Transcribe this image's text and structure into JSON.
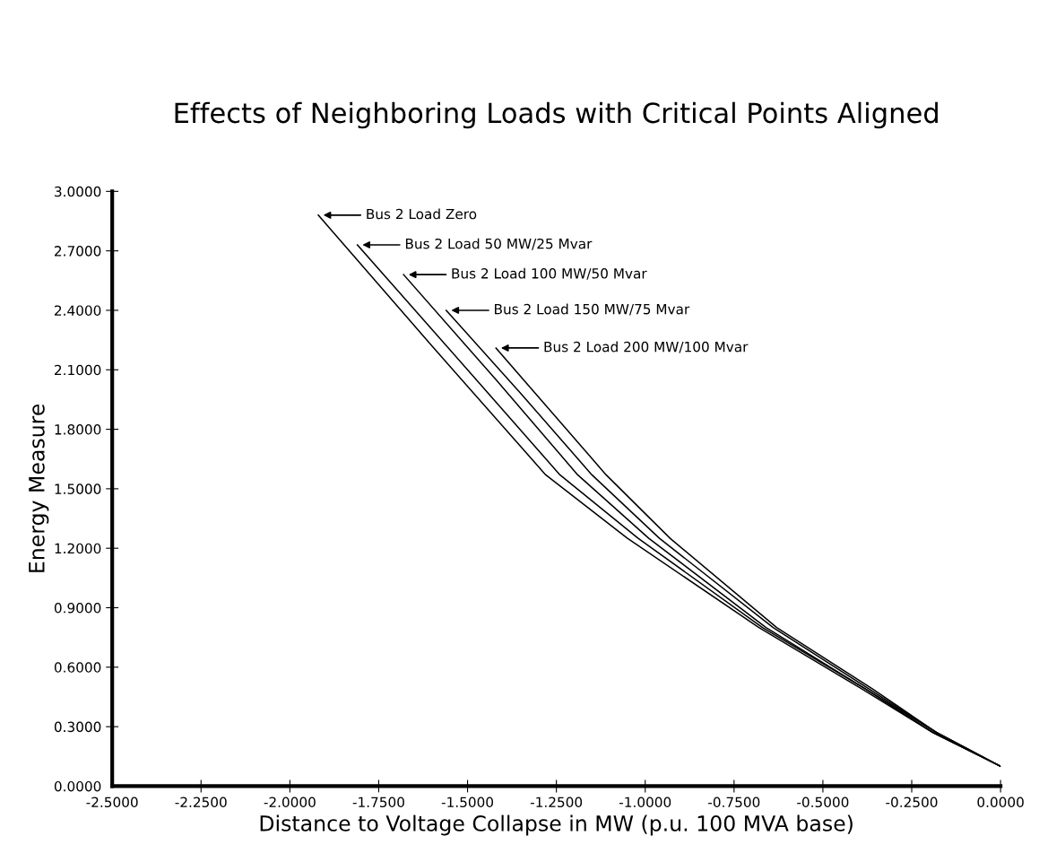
{
  "chart_data": {
    "type": "line",
    "title": "Effects of Neighboring Loads with Critical Points Aligned",
    "xlabel": "Distance to Voltage Collapse in MW (p.u. 100 MVA base)",
    "ylabel": "Energy Measure",
    "series": [
      {
        "name": "Bus 2 Load Zero",
        "color": "#000000",
        "x": [
          -1.92,
          -1.6,
          -1.28,
          -1.05,
          -0.68,
          -0.39,
          -0.19,
          0
        ],
        "values": [
          2.88,
          2.22,
          1.57,
          1.25,
          0.8,
          0.49,
          0.27,
          0.1
        ]
      },
      {
        "name": "Bus 2 Load 50 MW/25 Mvar",
        "color": "#000000",
        "x": [
          -1.81,
          -1.5,
          -1.24,
          -1.02,
          -0.67,
          -0.38,
          -0.19,
          0
        ],
        "values": [
          2.73,
          2.1,
          1.57,
          1.25,
          0.8,
          0.49,
          0.27,
          0.1
        ]
      },
      {
        "name": "Bus 2 Load 100 MW/50 Mvar",
        "color": "#000000",
        "x": [
          -1.68,
          -1.42,
          -1.19,
          -0.99,
          -0.66,
          -0.38,
          -0.18,
          0
        ],
        "values": [
          2.58,
          2.05,
          1.57,
          1.25,
          0.8,
          0.49,
          0.27,
          0.1
        ]
      },
      {
        "name": "Bus 2 Load 150 MW/75 Mvar",
        "color": "#000000",
        "x": [
          -1.56,
          -1.35,
          -1.15,
          -0.96,
          -0.64,
          -0.37,
          -0.18,
          0
        ],
        "values": [
          2.4,
          1.98,
          1.57,
          1.25,
          0.8,
          0.49,
          0.27,
          0.1
        ]
      },
      {
        "name": "Bus 2 Load 200 MW/100 Mvar",
        "color": "#000000",
        "x": [
          -1.42,
          -1.26,
          -1.11,
          -0.93,
          -0.63,
          -0.36,
          -0.18,
          0
        ],
        "values": [
          2.21,
          1.88,
          1.57,
          1.25,
          0.8,
          0.49,
          0.27,
          0.1
        ]
      }
    ],
    "xlim": [
      -2.5,
      0
    ],
    "ylim": [
      0,
      3
    ],
    "xticks": [
      {
        "value": -2.5,
        "label": "-2.5000"
      },
      {
        "value": -2.25,
        "label": "-2.2500"
      },
      {
        "value": -2.0,
        "label": "-2.0000"
      },
      {
        "value": -1.75,
        "label": "-1.7500"
      },
      {
        "value": -1.5,
        "label": "-1.5000"
      },
      {
        "value": -1.25,
        "label": "-1.2500"
      },
      {
        "value": -1.0,
        "label": "-1.0000"
      },
      {
        "value": -0.75,
        "label": "-0.7500"
      },
      {
        "value": -0.5,
        "label": "-0.5000"
      },
      {
        "value": -0.25,
        "label": "-0.2500"
      },
      {
        "value": 0,
        "label": "0.0000"
      }
    ],
    "yticks": [
      {
        "value": 0,
        "label": "0.0000"
      },
      {
        "value": 0.3,
        "label": "0.3000"
      },
      {
        "value": 0.6,
        "label": "0.6000"
      },
      {
        "value": 0.9,
        "label": "0.9000"
      },
      {
        "value": 1.2,
        "label": "1.2000"
      },
      {
        "value": 1.5,
        "label": "1.5000"
      },
      {
        "value": 1.8,
        "label": "1.8000"
      },
      {
        "value": 2.1,
        "label": "2.1000"
      },
      {
        "value": 2.4,
        "label": "2.4000"
      },
      {
        "value": 2.7,
        "label": "2.7000"
      },
      {
        "value": 3.0,
        "label": "3.0000"
      }
    ],
    "grid": false,
    "legend": "top"
  }
}
